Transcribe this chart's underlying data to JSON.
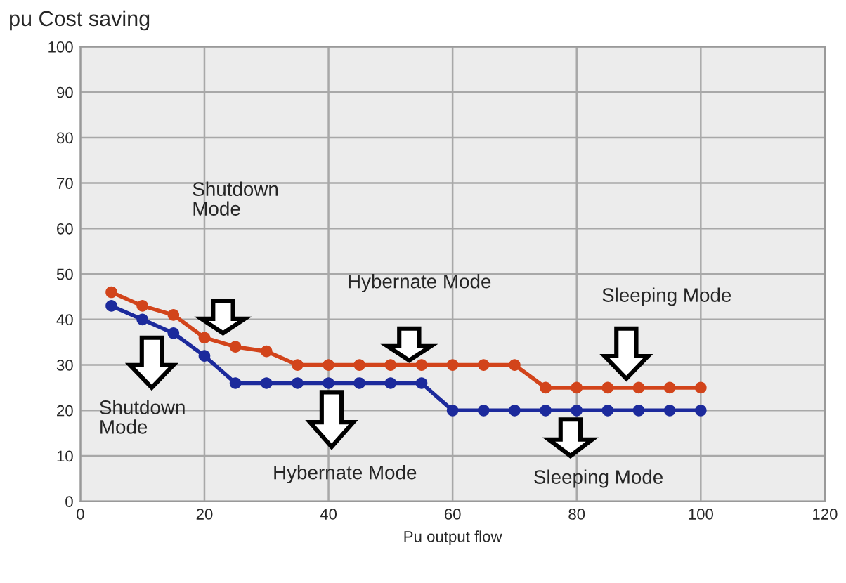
{
  "chart_data": {
    "type": "line",
    "title": "pu Cost saving",
    "xlabel": "Pu output flow",
    "x": [
      5,
      10,
      15,
      20,
      25,
      30,
      35,
      40,
      45,
      50,
      55,
      60,
      65,
      70,
      75,
      80,
      85,
      90,
      95,
      100
    ],
    "series": [
      {
        "color": "#d2441b",
        "values": [
          46,
          43,
          41,
          36,
          34,
          33,
          30,
          30,
          30,
          30,
          30,
          30,
          30,
          30,
          25,
          25,
          25,
          25,
          25,
          25
        ]
      },
      {
        "color": "#1c2a9c",
        "values": [
          43,
          40,
          37,
          32,
          26,
          26,
          26,
          26,
          26,
          26,
          26,
          20,
          20,
          20,
          20,
          20,
          20,
          20,
          20,
          20
        ]
      }
    ],
    "xlim": [
      0,
      120
    ],
    "xticks": [
      0,
      20,
      40,
      60,
      80,
      100,
      120
    ],
    "ylim": [
      0,
      100
    ],
    "yticks": [
      0,
      10,
      20,
      30,
      40,
      50,
      60,
      70,
      80,
      90,
      100
    ],
    "grid": true,
    "marker": "circle",
    "line_style": "solid",
    "annotations": [
      "Shutdown\nMode",
      "Shutdown\nMode",
      "Hybernate Mode",
      "Hybernate Mode",
      "Sleeping Mode",
      "Sleeping Mode"
    ]
  }
}
